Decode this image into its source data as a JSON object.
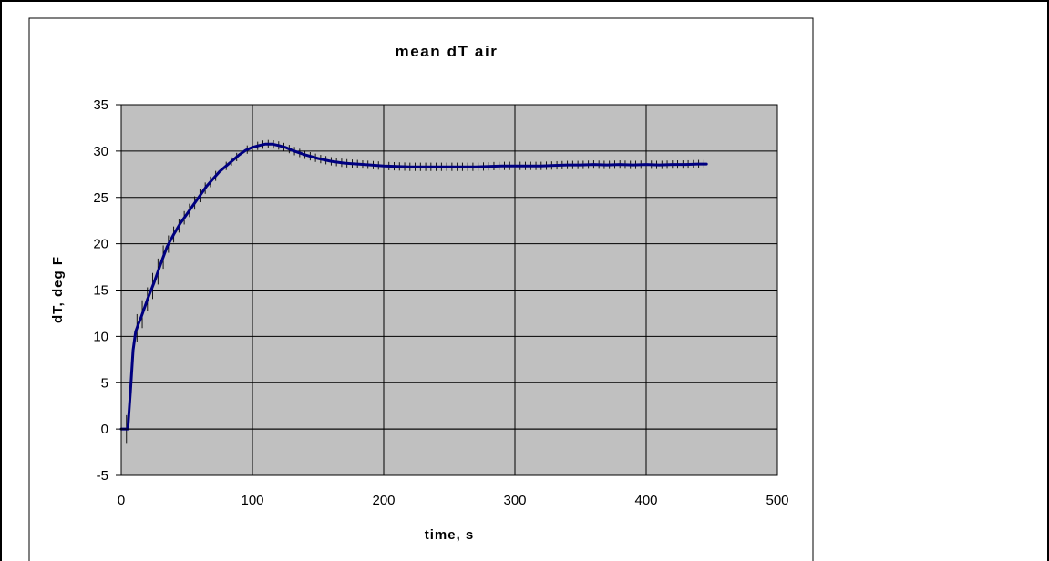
{
  "chart_data": {
    "type": "line",
    "title": "mean dT air",
    "xlabel": "time, s",
    "ylabel": "dT, deg F",
    "xlim": [
      0,
      500
    ],
    "ylim": [
      -5,
      35
    ],
    "xticks": [
      "0",
      "100",
      "200",
      "300",
      "400",
      "500"
    ],
    "yticks": [
      "-5",
      "0",
      "5",
      "10",
      "15",
      "20",
      "25",
      "30",
      "35"
    ],
    "grid": true,
    "legend": "none",
    "colors": {
      "plot_background": "#c0c0c0",
      "line": "#000080",
      "grid": "#000000",
      "error_bars": "#000000"
    },
    "series": [
      {
        "x": [
          0,
          3,
          5,
          7,
          9,
          11,
          13,
          15,
          20,
          25,
          30,
          35,
          40,
          45,
          50,
          55,
          60,
          65,
          70,
          75,
          80,
          85,
          90,
          95,
          100,
          105,
          110,
          115,
          120,
          125,
          130,
          140,
          150,
          160,
          170,
          180,
          190,
          200,
          210,
          220,
          230,
          240,
          250,
          260,
          270,
          280,
          290,
          300,
          310,
          320,
          330,
          340,
          350,
          360,
          370,
          380,
          390,
          400,
          410,
          420,
          430,
          440,
          446
        ],
        "y": [
          0.0,
          0.0,
          0.0,
          4.0,
          8.5,
          10.5,
          11.3,
          12.0,
          14.0,
          15.8,
          17.8,
          19.7,
          21.0,
          22.2,
          23.2,
          24.2,
          25.2,
          26.2,
          27.0,
          27.8,
          28.4,
          29.0,
          29.6,
          30.1,
          30.4,
          30.6,
          30.75,
          30.75,
          30.6,
          30.4,
          30.1,
          29.6,
          29.2,
          28.9,
          28.7,
          28.6,
          28.5,
          28.4,
          28.35,
          28.3,
          28.3,
          28.3,
          28.3,
          28.3,
          28.3,
          28.35,
          28.4,
          28.4,
          28.4,
          28.4,
          28.45,
          28.5,
          28.5,
          28.55,
          28.5,
          28.55,
          28.5,
          28.55,
          28.5,
          28.55,
          28.55,
          28.6,
          28.6
        ]
      }
    ]
  }
}
